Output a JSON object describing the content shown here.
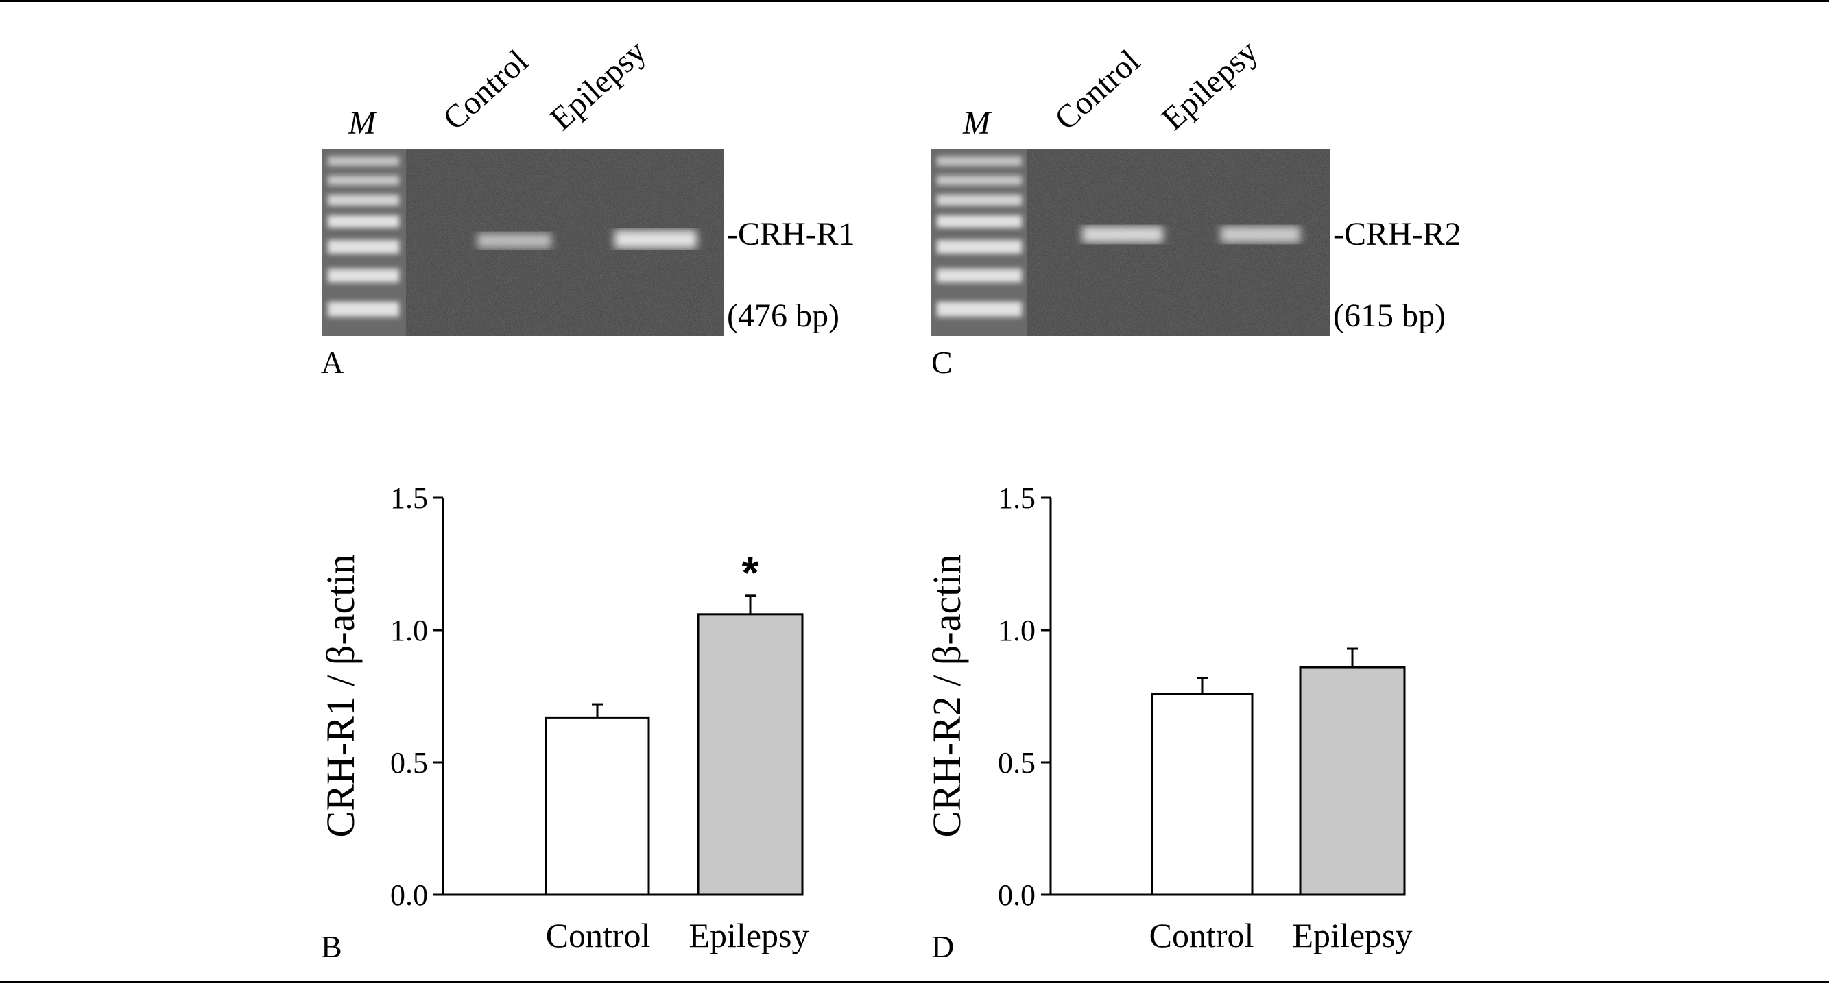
{
  "panels": {
    "A": {
      "panel_label": "A",
      "marker_label": "M",
      "lane_labels": [
        "Control",
        "Epilepsy"
      ],
      "band_label": "-CRH-R1",
      "size_label": "(476 bp)"
    },
    "C": {
      "panel_label": "C",
      "marker_label": "M",
      "lane_labels": [
        "Control",
        "Epilepsy"
      ],
      "band_label": "-CRH-R2",
      "size_label": "(615 bp)"
    }
  },
  "chart_data": [
    {
      "type": "bar",
      "panel_label": "B",
      "categories": [
        "Control",
        "Epilepsy"
      ],
      "values": [
        0.67,
        1.06
      ],
      "errors": [
        0.05,
        0.07
      ],
      "significance": [
        "",
        "*"
      ],
      "ylabel": "CRH-R1 / β-actin",
      "xlabel": "",
      "ylim": [
        0,
        1.5
      ],
      "yticks": [
        0.0,
        0.5,
        1.0,
        1.5
      ],
      "ytick_labels": [
        "0.0",
        "0.5",
        "1.0",
        "1.5"
      ],
      "bar_colors": [
        "#ffffff",
        "#c8c8c8"
      ],
      "grid": false
    },
    {
      "type": "bar",
      "panel_label": "D",
      "categories": [
        "Control",
        "Epilepsy"
      ],
      "values": [
        0.76,
        0.86
      ],
      "errors": [
        0.06,
        0.07
      ],
      "significance": [
        "",
        ""
      ],
      "ylabel": "CRH-R2 / β-actin",
      "xlabel": "",
      "ylim": [
        0,
        1.5
      ],
      "yticks": [
        0.0,
        0.5,
        1.0,
        1.5
      ],
      "ytick_labels": [
        "0.0",
        "0.5",
        "1.0",
        "1.5"
      ],
      "bar_colors": [
        "#ffffff",
        "#c8c8c8"
      ],
      "grid": false
    }
  ]
}
